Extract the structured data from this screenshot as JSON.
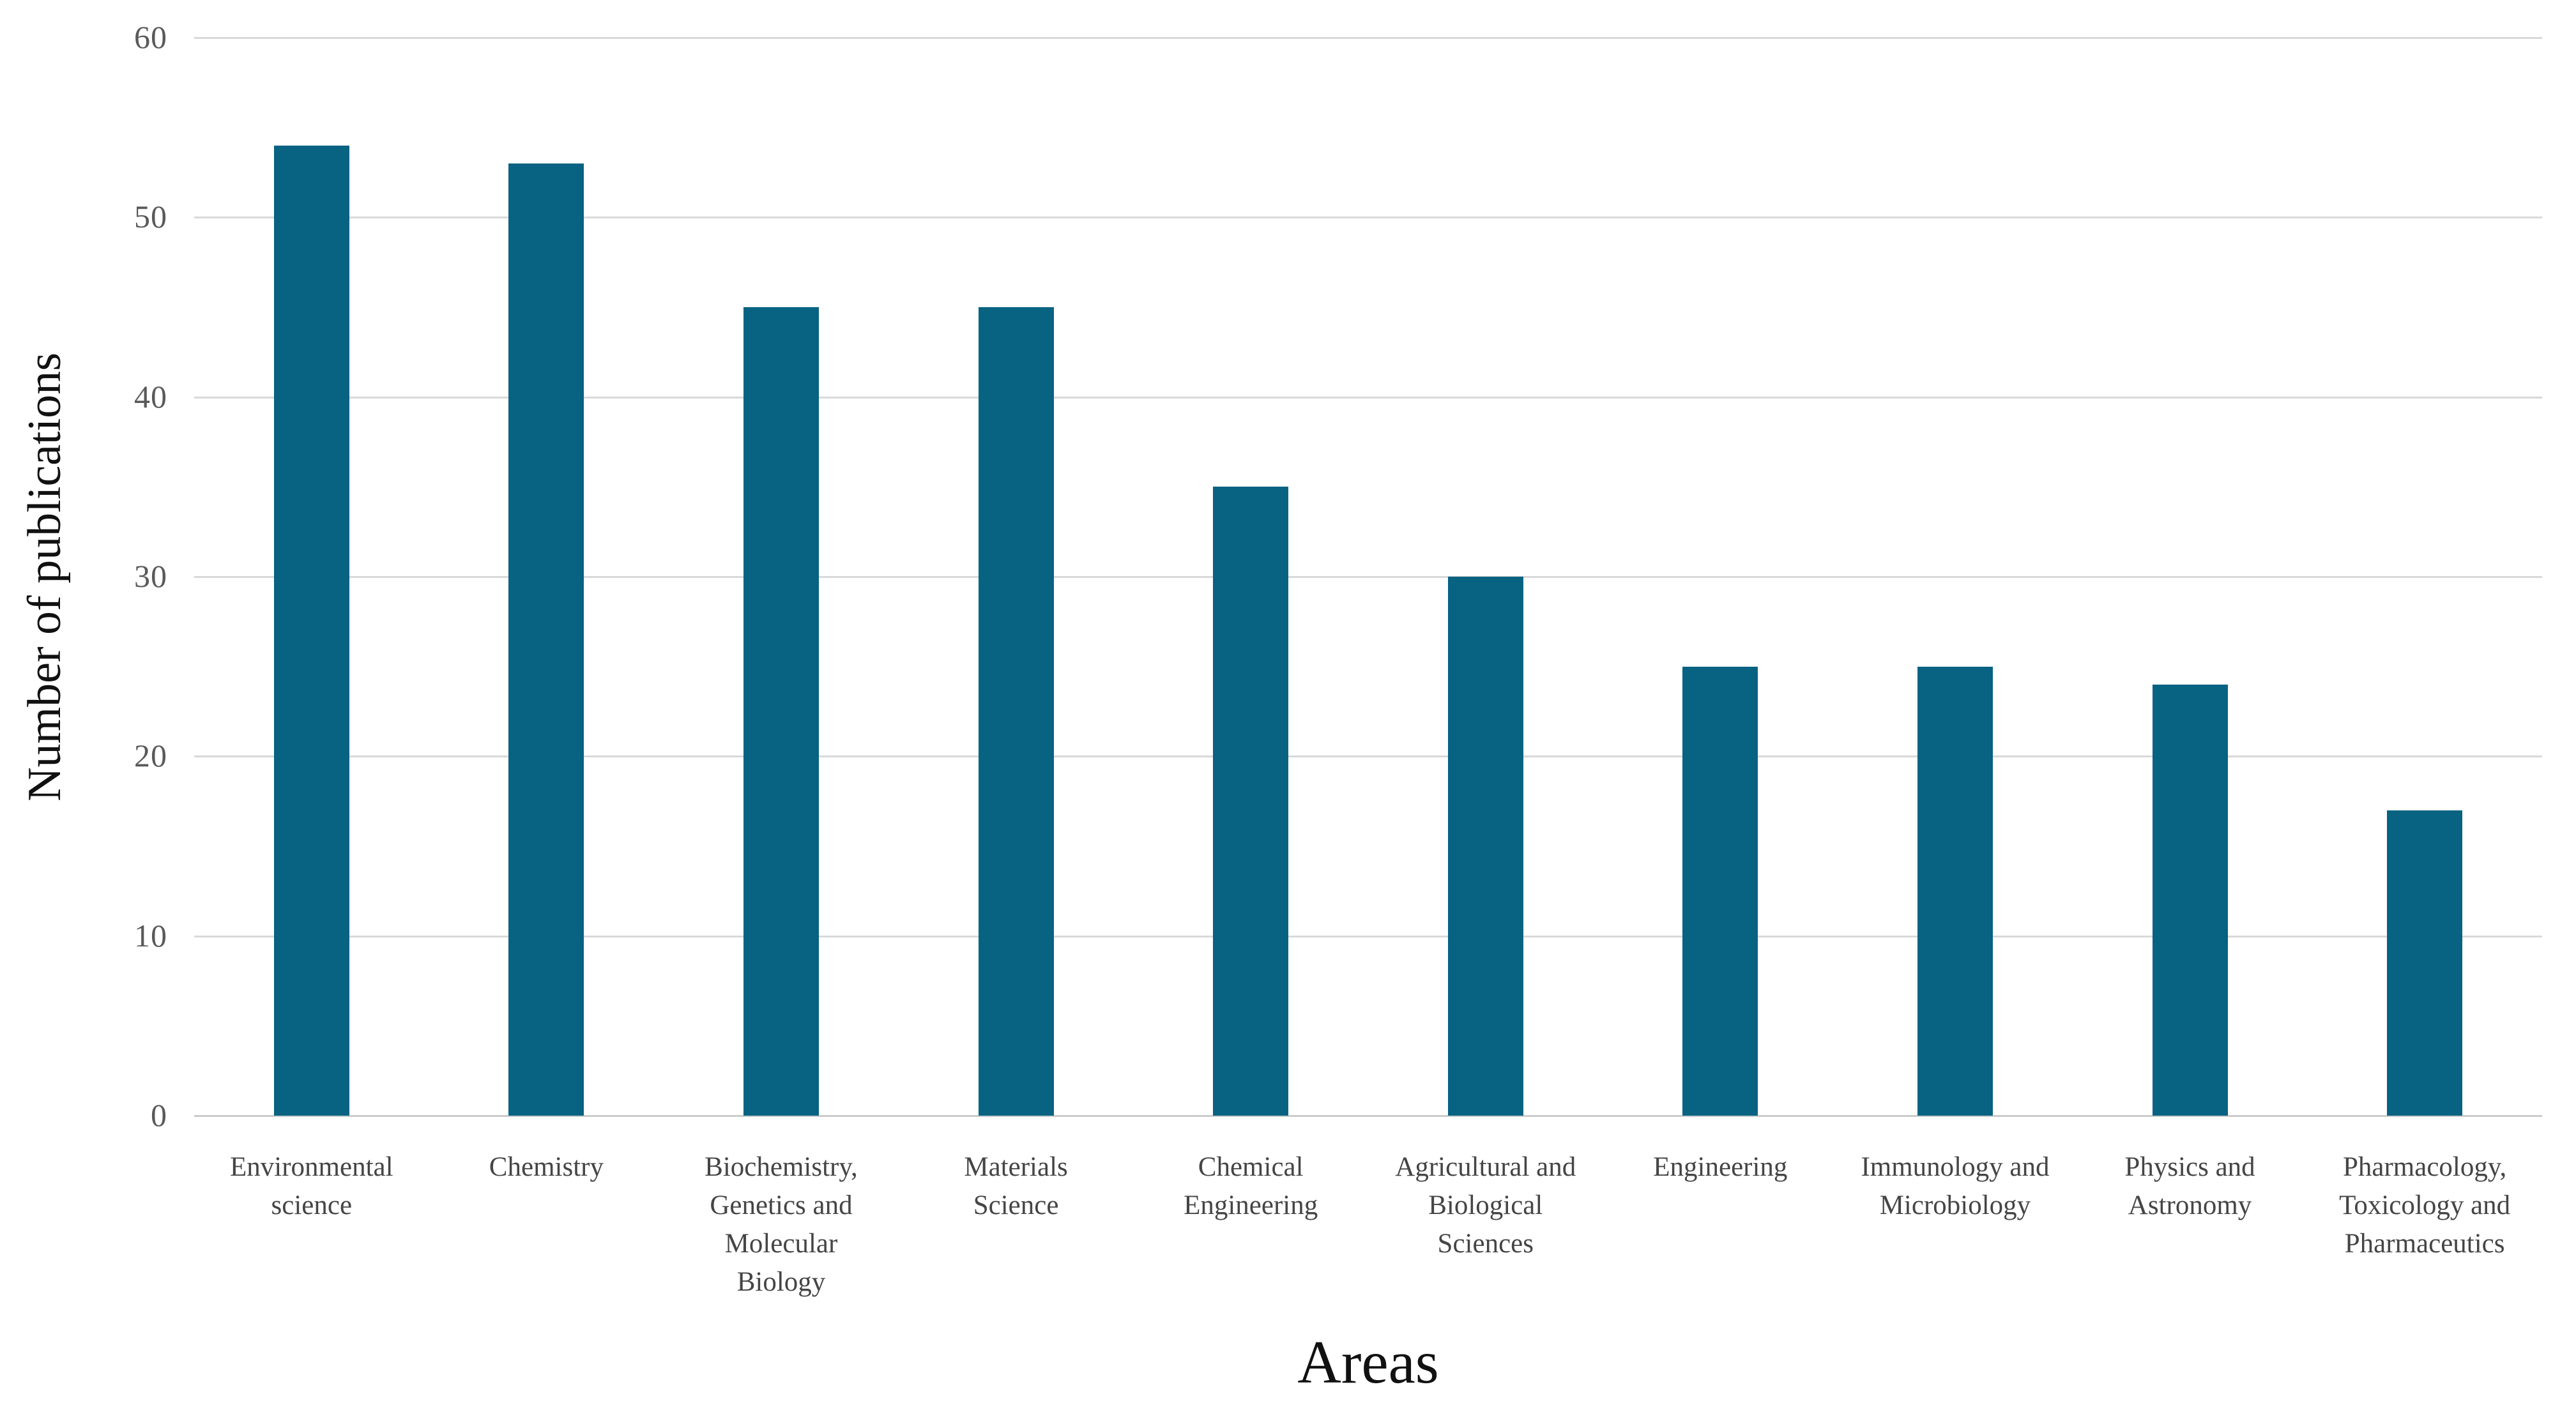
{
  "chart_data": {
    "type": "bar",
    "title": "",
    "xlabel": "Areas",
    "ylabel": "Number of publications",
    "categories": [
      "Environmental science",
      "Chemistry",
      "Biochemistry, Genetics and Molecular Biology",
      "Materials Science",
      "Chemical Engineering",
      "Agricultural and Biological Sciences",
      "Engineering",
      "Immunology and Microbiology",
      "Physics and Astronomy",
      "Pharmacology, Toxicology and Pharmaceutics"
    ],
    "category_label_lines": [
      [
        "Environmental",
        "science"
      ],
      [
        "Chemistry"
      ],
      [
        "Biochemistry,",
        "Genetics and",
        "Molecular",
        "Biology"
      ],
      [
        "Materials",
        "Science"
      ],
      [
        "Chemical",
        "Engineering"
      ],
      [
        "Agricultural and",
        "Biological",
        "Sciences"
      ],
      [
        "Engineering"
      ],
      [
        "Immunology and",
        "Microbiology"
      ],
      [
        "Physics and",
        "Astronomy"
      ],
      [
        "Pharmacology,",
        "Toxicology and",
        "Pharmaceutics"
      ]
    ],
    "values": [
      54,
      53,
      45,
      45,
      35,
      30,
      25,
      25,
      24,
      17
    ],
    "ylim": [
      0,
      60
    ],
    "yticks": [
      0,
      10,
      20,
      30,
      40,
      50,
      60
    ],
    "grid": true,
    "legend": "none",
    "bar_color": "#086282",
    "gridline_color": "#d9d9d9",
    "axis_line_color": "#cccccc",
    "tick_label_color": "#595959",
    "category_label_color": "#454545",
    "axis_title_color": "#111111"
  }
}
